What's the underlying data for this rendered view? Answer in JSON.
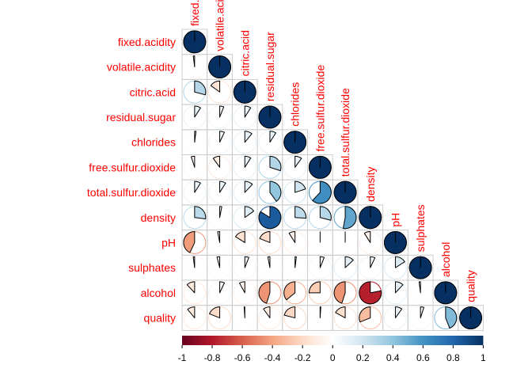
{
  "chart_data": {
    "type": "heatmap",
    "method": "pie",
    "layout": "lower triangle",
    "variables": [
      "fixed.acidity",
      "volatile.acidity",
      "citric.acid",
      "residual.sugar",
      "chlorides",
      "free.sulfur.dioxide",
      "total.sulfur.dioxide",
      "density",
      "pH",
      "sulphates",
      "alcohol",
      "quality"
    ],
    "matrix": [
      [
        1.0,
        0,
        0,
        0,
        0,
        0,
        0,
        0,
        0,
        0,
        0,
        0
      ],
      [
        -0.02,
        1.0,
        0,
        0,
        0,
        0,
        0,
        0,
        0,
        0,
        0,
        0
      ],
      [
        0.29,
        -0.15,
        1.0,
        0,
        0,
        0,
        0,
        0,
        0,
        0,
        0,
        0
      ],
      [
        0.09,
        0.06,
        0.09,
        1.0,
        0,
        0,
        0,
        0,
        0,
        0,
        0,
        0
      ],
      [
        0.02,
        0.07,
        0.11,
        0.09,
        1.0,
        0,
        0,
        0,
        0,
        0,
        0,
        0
      ],
      [
        -0.05,
        -0.1,
        0.09,
        0.3,
        0.1,
        1.0,
        0,
        0,
        0,
        0,
        0,
        0
      ],
      [
        0.09,
        0.09,
        0.12,
        0.4,
        0.2,
        0.62,
        1.0,
        0,
        0,
        0,
        0,
        0
      ],
      [
        0.27,
        0.03,
        0.15,
        0.84,
        0.26,
        0.29,
        0.53,
        1.0,
        0,
        0,
        0,
        0
      ],
      [
        -0.43,
        -0.03,
        -0.16,
        -0.19,
        -0.09,
        0.0,
        0.0,
        -0.09,
        1.0,
        0,
        0,
        0
      ],
      [
        -0.02,
        -0.04,
        0.06,
        -0.03,
        0.02,
        0.06,
        0.13,
        0.07,
        0.16,
        1.0,
        0,
        0
      ],
      [
        -0.12,
        0.07,
        -0.08,
        -0.45,
        -0.36,
        -0.25,
        -0.45,
        -0.78,
        0.12,
        -0.02,
        1.0,
        0
      ],
      [
        -0.11,
        -0.19,
        -0.01,
        -0.1,
        -0.21,
        0.01,
        -0.17,
        -0.31,
        0.1,
        0.05,
        0.44,
        1.0
      ]
    ],
    "colorbar": {
      "ticks": [
        "-1",
        "-0.8",
        "-0.6",
        "-0.4",
        "-0.2",
        "0",
        "0.2",
        "0.4",
        "0.6",
        "0.8",
        "1"
      ],
      "range": [
        -1,
        1
      ],
      "colors": [
        "#67001F",
        "#B2182B",
        "#D6604D",
        "#F4A582",
        "#FDDBC7",
        "#FFFFFF",
        "#D1E5F0",
        "#92C5DE",
        "#4393C3",
        "#2166AC",
        "#053061"
      ]
    },
    "label_color": "#FF0000",
    "grid_color": "#CCCCCC"
  }
}
